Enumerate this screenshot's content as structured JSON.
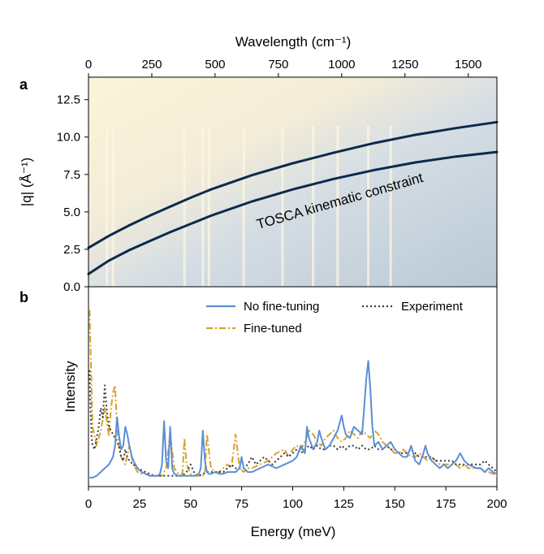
{
  "chart_data": [
    {
      "panel": "a",
      "type": "heatmap",
      "top_xlabel": "Wavelength (cm⁻¹)",
      "top_xticks": [
        "0",
        "250",
        "500",
        "750",
        "1000",
        "1250",
        "1500"
      ],
      "top_xtick_values": [
        0,
        250,
        500,
        750,
        1000,
        1250,
        1500
      ],
      "xlim_energy_meV": [
        0,
        200
      ],
      "ylabel": "|q| (Å⁻¹)",
      "yticks": [
        "0.0",
        "2.5",
        "5.0",
        "7.5",
        "10.0",
        "12.5"
      ],
      "ytick_values": [
        0,
        2.5,
        5.0,
        7.5,
        10.0,
        12.5
      ],
      "ylim": [
        0,
        14
      ],
      "annotation": "TOSCA kinematic constraint",
      "colors": {
        "low": "#fbf4d9",
        "high": "#b9c9d6",
        "curve": "#0c2a4c"
      },
      "kinematic_curves": [
        {
          "x": [
            0,
            5,
            10,
            20,
            30,
            40,
            50,
            60,
            80,
            100,
            120,
            140,
            160,
            180,
            200
          ],
          "y": [
            2.6,
            3.0,
            3.4,
            4.1,
            4.75,
            5.35,
            5.95,
            6.5,
            7.45,
            8.25,
            8.95,
            9.6,
            10.15,
            10.6,
            11.0
          ]
        },
        {
          "x": [
            0,
            5,
            10,
            20,
            30,
            40,
            50,
            60,
            80,
            100,
            120,
            140,
            160,
            180,
            200
          ],
          "y": [
            0.85,
            1.3,
            1.75,
            2.45,
            3.05,
            3.65,
            4.2,
            4.75,
            5.7,
            6.5,
            7.2,
            7.8,
            8.3,
            8.7,
            9.0
          ]
        }
      ],
      "bright_lines_meV": [
        9,
        12,
        47,
        56,
        59,
        76,
        95,
        110,
        122,
        137,
        148
      ]
    },
    {
      "panel": "b",
      "type": "line",
      "xlabel": "Energy (meV)",
      "ylabel": "Intensity",
      "xticks": [
        "0",
        "25",
        "50",
        "75",
        "100",
        "125",
        "150",
        "175",
        "200"
      ],
      "xtick_values": [
        0,
        25,
        50,
        75,
        100,
        125,
        150,
        175,
        200
      ],
      "xlim": [
        0,
        200
      ],
      "ylim": [
        0,
        100
      ],
      "legend": [
        "No fine-tuning",
        "Experiment",
        "Fine-tuned"
      ],
      "series": [
        {
          "name": "No fine-tuning",
          "color": "#5b8ed6",
          "style": "solid",
          "x": [
            0.5,
            2,
            4,
            6,
            8,
            10,
            12,
            13,
            14,
            15,
            16,
            17,
            18,
            19,
            20,
            21,
            22,
            24,
            26,
            28,
            30,
            32,
            34,
            35,
            36,
            37,
            38,
            39,
            40,
            41,
            42,
            44,
            46,
            48,
            50,
            52,
            54,
            55,
            56,
            57,
            58,
            59,
            60,
            62,
            64,
            66,
            68,
            70,
            72,
            74,
            75,
            76,
            78,
            80,
            84,
            88,
            92,
            96,
            100,
            102,
            104,
            106,
            107,
            108,
            110,
            112,
            113,
            114,
            116,
            118,
            120,
            122,
            124,
            125,
            126,
            128,
            130,
            132,
            134,
            135,
            136,
            137,
            138,
            139,
            140,
            142,
            144,
            146,
            148,
            150,
            152,
            154,
            156,
            158,
            160,
            162,
            164,
            165,
            166,
            168,
            170,
            172,
            174,
            176,
            178,
            180,
            182,
            184,
            186,
            188,
            190,
            192,
            194,
            196,
            198,
            200
          ],
          "y": [
            3,
            3,
            4,
            6,
            8,
            10,
            14,
            20,
            35,
            25,
            18,
            20,
            30,
            26,
            20,
            15,
            12,
            8,
            6,
            5,
            4,
            4,
            4,
            5,
            10,
            33,
            12,
            8,
            30,
            8,
            5,
            4,
            4,
            4,
            4,
            4,
            5,
            8,
            28,
            12,
            6,
            5,
            5,
            6,
            5,
            5,
            6,
            6,
            6,
            8,
            14,
            8,
            6,
            6,
            8,
            10,
            8,
            10,
            12,
            14,
            20,
            16,
            30,
            24,
            18,
            22,
            28,
            24,
            18,
            20,
            24,
            28,
            36,
            30,
            26,
            24,
            30,
            28,
            26,
            40,
            55,
            65,
            50,
            30,
            20,
            22,
            18,
            20,
            22,
            18,
            16,
            14,
            14,
            20,
            12,
            10,
            16,
            20,
            16,
            12,
            10,
            8,
            10,
            8,
            10,
            12,
            16,
            12,
            10,
            9,
            8,
            8,
            6,
            8,
            6,
            5
          ]
        },
        {
          "name": "Experiment",
          "color": "#3a3a3a",
          "style": "dotted",
          "x": [
            0.5,
            1,
            1.5,
            2,
            3,
            4,
            5,
            6,
            7,
            8,
            9,
            10,
            11,
            12,
            13,
            14,
            15,
            16,
            17,
            18,
            19,
            20,
            22,
            24,
            26,
            28,
            30,
            32,
            34,
            36,
            38,
            40,
            42,
            44,
            46,
            48,
            50,
            52,
            54,
            56,
            58,
            60,
            62,
            64,
            66,
            68,
            70,
            72,
            74,
            76,
            78,
            80,
            82,
            84,
            86,
            88,
            90,
            92,
            94,
            96,
            98,
            100,
            102,
            104,
            106,
            108,
            110,
            112,
            114,
            116,
            118,
            120,
            122,
            124,
            126,
            128,
            130,
            132,
            134,
            136,
            138,
            140,
            142,
            144,
            146,
            148,
            150,
            152,
            154,
            156,
            158,
            160,
            162,
            164,
            166,
            168,
            170,
            172,
            174,
            176,
            178,
            180,
            182,
            184,
            186,
            188,
            190,
            192,
            194,
            196,
            198,
            200
          ],
          "y": [
            60,
            40,
            25,
            20,
            18,
            24,
            30,
            40,
            35,
            52,
            38,
            30,
            28,
            26,
            24,
            22,
            20,
            14,
            12,
            18,
            14,
            12,
            10,
            8,
            7,
            6,
            5,
            4,
            4,
            4,
            4,
            4,
            4,
            4,
            4,
            6,
            10,
            5,
            4,
            5,
            6,
            6,
            6,
            6,
            6,
            8,
            10,
            8,
            8,
            8,
            10,
            14,
            10,
            12,
            14,
            12,
            10,
            12,
            14,
            16,
            14,
            16,
            18,
            16,
            18,
            20,
            18,
            20,
            18,
            18,
            20,
            20,
            18,
            20,
            18,
            20,
            20,
            18,
            20,
            18,
            18,
            20,
            18,
            18,
            20,
            18,
            18,
            16,
            16,
            16,
            18,
            16,
            14,
            14,
            14,
            14,
            12,
            12,
            12,
            12,
            12,
            10,
            10,
            10,
            10,
            10,
            10,
            10,
            12,
            10,
            8,
            6
          ]
        },
        {
          "name": "Fine-tuned",
          "color": "#d4a32a",
          "style": "dashdot",
          "x": [
            0.5,
            2,
            4,
            6,
            8,
            10,
            11,
            12,
            13,
            14,
            15,
            16,
            18,
            20,
            22,
            24,
            26,
            28,
            30,
            32,
            34,
            36,
            38,
            40,
            42,
            44,
            46,
            47,
            48,
            50,
            52,
            54,
            56,
            57,
            58,
            60,
            62,
            64,
            66,
            68,
            70,
            72,
            74,
            76,
            78,
            80,
            84,
            88,
            92,
            96,
            98,
            100,
            102,
            104,
            106,
            108,
            110,
            112,
            114,
            116,
            118,
            120,
            122,
            124,
            126,
            128,
            130,
            132,
            134,
            136,
            138,
            140,
            142,
            144,
            146,
            148,
            150,
            152,
            154,
            156,
            158,
            160,
            162,
            164,
            166,
            168,
            170,
            172,
            174,
            176,
            178,
            180,
            182,
            184,
            186,
            188,
            190,
            192,
            194,
            196,
            198,
            200
          ],
          "y": [
            92,
            30,
            20,
            28,
            40,
            25,
            40,
            48,
            52,
            30,
            18,
            14,
            10,
            20,
            10,
            6,
            5,
            5,
            4,
            4,
            4,
            4,
            8,
            26,
            8,
            5,
            5,
            24,
            10,
            5,
            4,
            4,
            4,
            6,
            26,
            8,
            6,
            6,
            8,
            10,
            8,
            26,
            8,
            6,
            8,
            8,
            10,
            12,
            16,
            18,
            14,
            18,
            20,
            18,
            22,
            28,
            26,
            22,
            20,
            24,
            26,
            28,
            24,
            22,
            24,
            28,
            26,
            24,
            28,
            26,
            24,
            28,
            26,
            22,
            20,
            18,
            16,
            16,
            18,
            16,
            14,
            14,
            16,
            14,
            12,
            14,
            12,
            10,
            10,
            10,
            10,
            10,
            8,
            10,
            8,
            8,
            8,
            8,
            6,
            6,
            5,
            4
          ]
        }
      ]
    }
  ]
}
